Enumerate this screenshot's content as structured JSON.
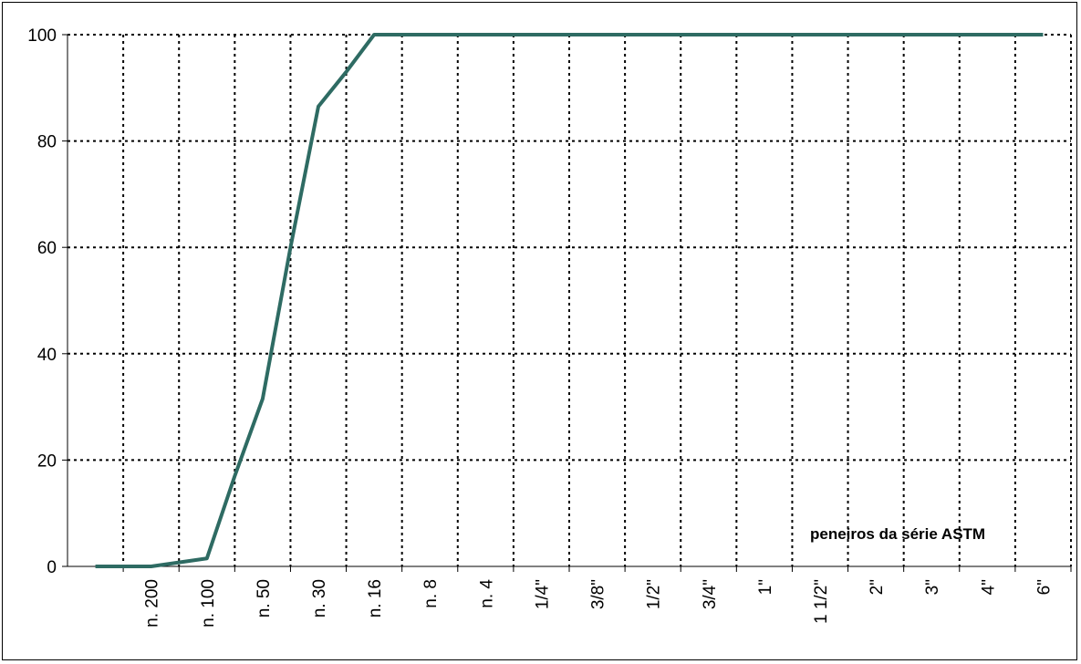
{
  "chart_data": {
    "type": "line",
    "title": "",
    "xlabel": "",
    "ylabel": "",
    "annotation": "peneiros da série ASTM",
    "categories": [
      "",
      "n. 200",
      "n. 100",
      "n. 50",
      "n. 30",
      "n. 16",
      "n. 8",
      "n. 4",
      "1/4\"",
      "3/8\"",
      "1/2\"",
      "3/4\"",
      "1\"",
      "1 1/2\"",
      "2\"",
      "3\"",
      "4\"",
      "6\""
    ],
    "y_ticks": [
      "0",
      "20",
      "40",
      "60",
      "80",
      "100"
    ],
    "ylim": [
      0,
      100
    ],
    "grid": true,
    "legend": "none",
    "x": [
      0,
      1,
      2,
      2.5,
      3,
      3.5,
      4,
      4.5,
      5,
      6,
      7,
      8,
      9,
      10,
      11,
      12,
      13,
      14,
      15,
      16,
      17
    ],
    "series": [
      {
        "values": [
          0,
          0,
          1.5,
          17,
          31.5,
          60,
          86.5,
          93,
          100,
          100,
          100,
          100,
          100,
          100,
          100,
          100,
          100,
          100,
          100,
          100,
          100
        ],
        "color": "#2e6b63"
      }
    ]
  }
}
